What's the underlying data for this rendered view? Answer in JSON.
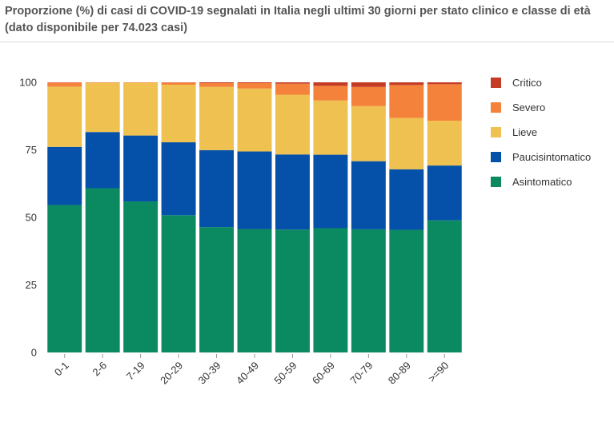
{
  "header": {
    "title": "Proporzione (%) di casi di COVID-19 segnalati in Italia negli ultimi 30 giorni per stato clinico e classe di età (dato disponibile per 74.023 casi)"
  },
  "chart_data": {
    "type": "bar",
    "stacked": true,
    "title": "Proporzione (%) di casi di COVID-19 segnalati in Italia negli ultimi 30 giorni per stato clinico e classe di età (dato disponibile per 74.023 casi)",
    "xlabel": "",
    "ylabel": "",
    "ylim": [
      0,
      100
    ],
    "yticks": [
      0,
      25,
      50,
      75,
      100
    ],
    "legend_position": "right",
    "grid": false,
    "categories": [
      "0-1",
      "2-6",
      "7-19",
      "20-29",
      "30-39",
      "40-49",
      "50-59",
      "60-69",
      "70-79",
      "80-89",
      ">=90"
    ],
    "series": [
      {
        "name": "Asintomatico",
        "color": "#0b8a62",
        "values": [
          54.6,
          60.8,
          55.9,
          50.8,
          46.4,
          45.7,
          45.5,
          46.0,
          45.6,
          45.4,
          48.9
        ]
      },
      {
        "name": "Paucisintomatico",
        "color": "#0550a8",
        "values": [
          21.5,
          20.8,
          24.4,
          27.0,
          28.5,
          28.7,
          27.8,
          27.2,
          25.2,
          22.4,
          20.3
        ]
      },
      {
        "name": "Lieve",
        "color": "#eec150",
        "values": [
          22.3,
          18.2,
          19.5,
          21.3,
          23.4,
          23.3,
          22.1,
          20.1,
          20.4,
          19.0,
          16.6
        ]
      },
      {
        "name": "Severo",
        "color": "#f5823a",
        "values": [
          1.5,
          0.2,
          0.2,
          0.8,
          1.4,
          2.0,
          4.1,
          5.4,
          7.1,
          12.2,
          13.5
        ]
      },
      {
        "name": "Critico",
        "color": "#c43c25",
        "values": [
          0.1,
          0.0,
          0.0,
          0.1,
          0.3,
          0.3,
          0.5,
          1.3,
          1.7,
          1.0,
          0.7
        ]
      }
    ]
  }
}
